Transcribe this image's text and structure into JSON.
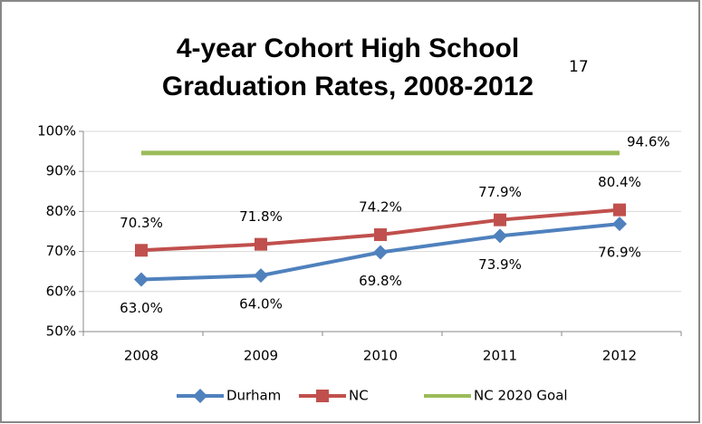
{
  "chart_data": {
    "type": "line",
    "title": [
      "4-year Cohort High School",
      "Graduation Rates, 2008-2012"
    ],
    "title_note": "17",
    "categories": [
      "2008",
      "2009",
      "2010",
      "2011",
      "2012"
    ],
    "series": [
      {
        "name": "Durham",
        "color": "#4f81bd",
        "marker": "diamond",
        "label_position": "below",
        "values": [
          63.0,
          64.0,
          69.8,
          73.9,
          76.9
        ],
        "value_labels": [
          "63.0%",
          "64.0%",
          "69.8%",
          "73.9%",
          "76.9%"
        ]
      },
      {
        "name": "NC",
        "color": "#c0504d",
        "marker": "square",
        "label_position": "above",
        "values": [
          70.3,
          71.8,
          74.2,
          77.9,
          80.4
        ],
        "value_labels": [
          "70.3%",
          "71.8%",
          "74.2%",
          "77.9%",
          "80.4%"
        ]
      },
      {
        "name": "NC 2020 Goal",
        "color": "#9bbb59",
        "marker": "none",
        "label_position": "right",
        "values": [
          94.6,
          94.6,
          94.6,
          94.6,
          94.6
        ],
        "value_labels": [
          null,
          null,
          null,
          null,
          "94.6%"
        ]
      }
    ],
    "ylim": [
      50,
      100
    ],
    "yticks": [
      {
        "value": 50,
        "label": "50%"
      },
      {
        "value": 60,
        "label": "60%"
      },
      {
        "value": 70,
        "label": "70%"
      },
      {
        "value": 80,
        "label": "80%"
      },
      {
        "value": 90,
        "label": "90%"
      },
      {
        "value": 100,
        "label": "100%"
      }
    ],
    "grid": true,
    "legend": "bottom"
  }
}
